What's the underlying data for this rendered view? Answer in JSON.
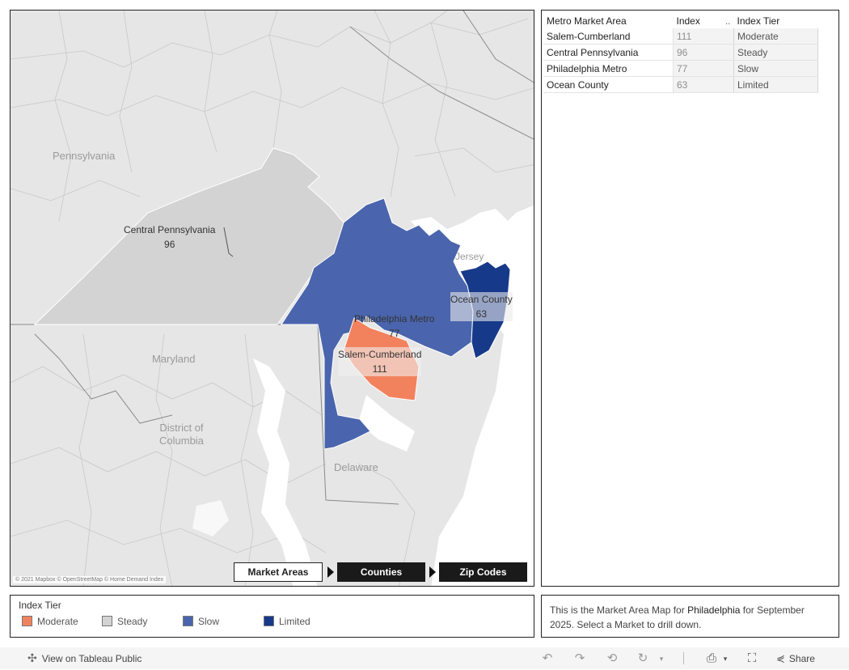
{
  "map": {
    "regions": [
      {
        "name": "Central Pennsylvania",
        "index": "96",
        "tier": "Steady",
        "color": "#d3d3d3"
      },
      {
        "name": "Philadelphia Metro",
        "index": "77",
        "tier": "Slow",
        "color": "#4a65ad"
      },
      {
        "name": "Salem-Cumberland",
        "index": "111",
        "tier": "Moderate",
        "color": "#f2825e"
      },
      {
        "name": "Ocean County",
        "index": "63",
        "tier": "Limited",
        "color": "#17398a"
      }
    ],
    "place_labels": {
      "pennsylvania": "Pennsylvania",
      "maryland": "Maryland",
      "district_of_columbia": "District of\nColumbia",
      "delaware": "Delaware",
      "jersey": "Jersey"
    },
    "attribution": "© 2021 Mapbox © OpenStreetMap © Home Demand Index",
    "base_color": "#e6e6e6",
    "water_color": "#ffffff"
  },
  "nav": {
    "market_areas": "Market Areas",
    "counties": "Counties",
    "zip_codes": "Zip Codes"
  },
  "table": {
    "headers": {
      "market": "Metro Market Area",
      "index": "Index",
      "sort": "..",
      "tier": "Index Tier"
    },
    "rows": [
      {
        "market": "Salem-Cumberland",
        "index": "111",
        "tier": "Moderate"
      },
      {
        "market": "Central Pennsylvania",
        "index": "96",
        "tier": "Steady"
      },
      {
        "market": "Philadelphia Metro",
        "index": "77",
        "tier": "Slow"
      },
      {
        "market": "Ocean County",
        "index": "63",
        "tier": "Limited"
      }
    ]
  },
  "legend": {
    "title": "Index Tier",
    "items": [
      {
        "label": "Moderate",
        "color": "#f2825e"
      },
      {
        "label": "Steady",
        "color": "#d3d3d3"
      },
      {
        "label": "Slow",
        "color": "#4a65ad"
      },
      {
        "label": "Limited",
        "color": "#17398a"
      }
    ]
  },
  "note": {
    "before": "This is the Market Area Map for ",
    "city": "Philadelphia",
    "after": " for September 2025.  Select a Market to drill down."
  },
  "toolbar": {
    "view_on": "View on Tableau Public",
    "share": "Share"
  }
}
